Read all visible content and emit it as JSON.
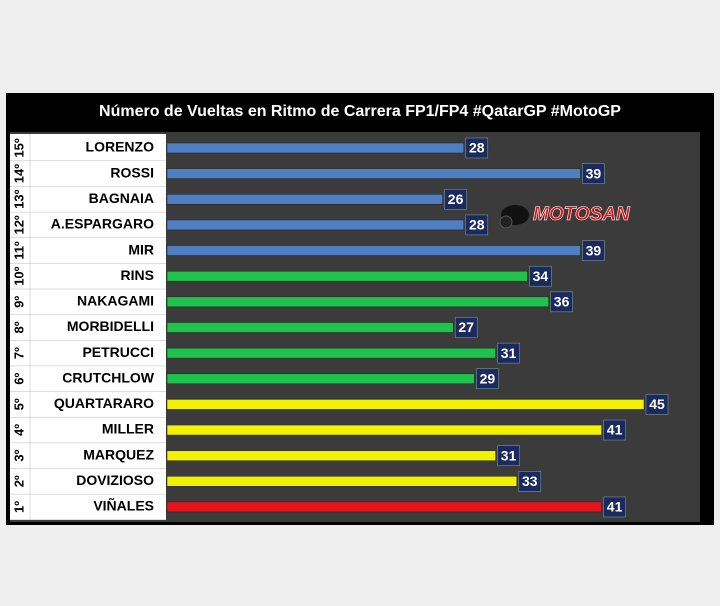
{
  "chart_data": {
    "type": "hbar",
    "title": "Número de Vueltas en Ritmo de Carrera FP1/FP4 #QatarGP #MotoGP",
    "watermark": "MOTOSAN",
    "ranks": [
      "15º",
      "14º",
      "13º",
      "12º",
      "11º",
      "10º",
      "9º",
      "8º",
      "7º",
      "6º",
      "5º",
      "4º",
      "3º",
      "2º",
      "1º"
    ],
    "categories": [
      "LORENZO",
      "ROSSI",
      "BAGNAIA",
      "A.ESPARGARO",
      "MIR",
      "RINS",
      "NAKAGAMI",
      "MORBIDELLI",
      "PETRUCCI",
      "CRUTCHLOW",
      "QUARTARARO",
      "MILLER",
      "MARQUEZ",
      "DOVIZIOSO",
      "VIÑALES"
    ],
    "values": [
      28,
      39,
      26,
      28,
      39,
      34,
      36,
      27,
      31,
      29,
      45,
      41,
      31,
      33,
      41
    ],
    "colors": [
      "#4f7fc0",
      "#4f7fc0",
      "#4f7fc0",
      "#4f7fc0",
      "#4f7fc0",
      "#1fc24a",
      "#1fc24a",
      "#1fc24a",
      "#1fc24a",
      "#1fc24a",
      "#f2f200",
      "#f2f200",
      "#f2f200",
      "#f2f200",
      "#e6141c"
    ]
  }
}
